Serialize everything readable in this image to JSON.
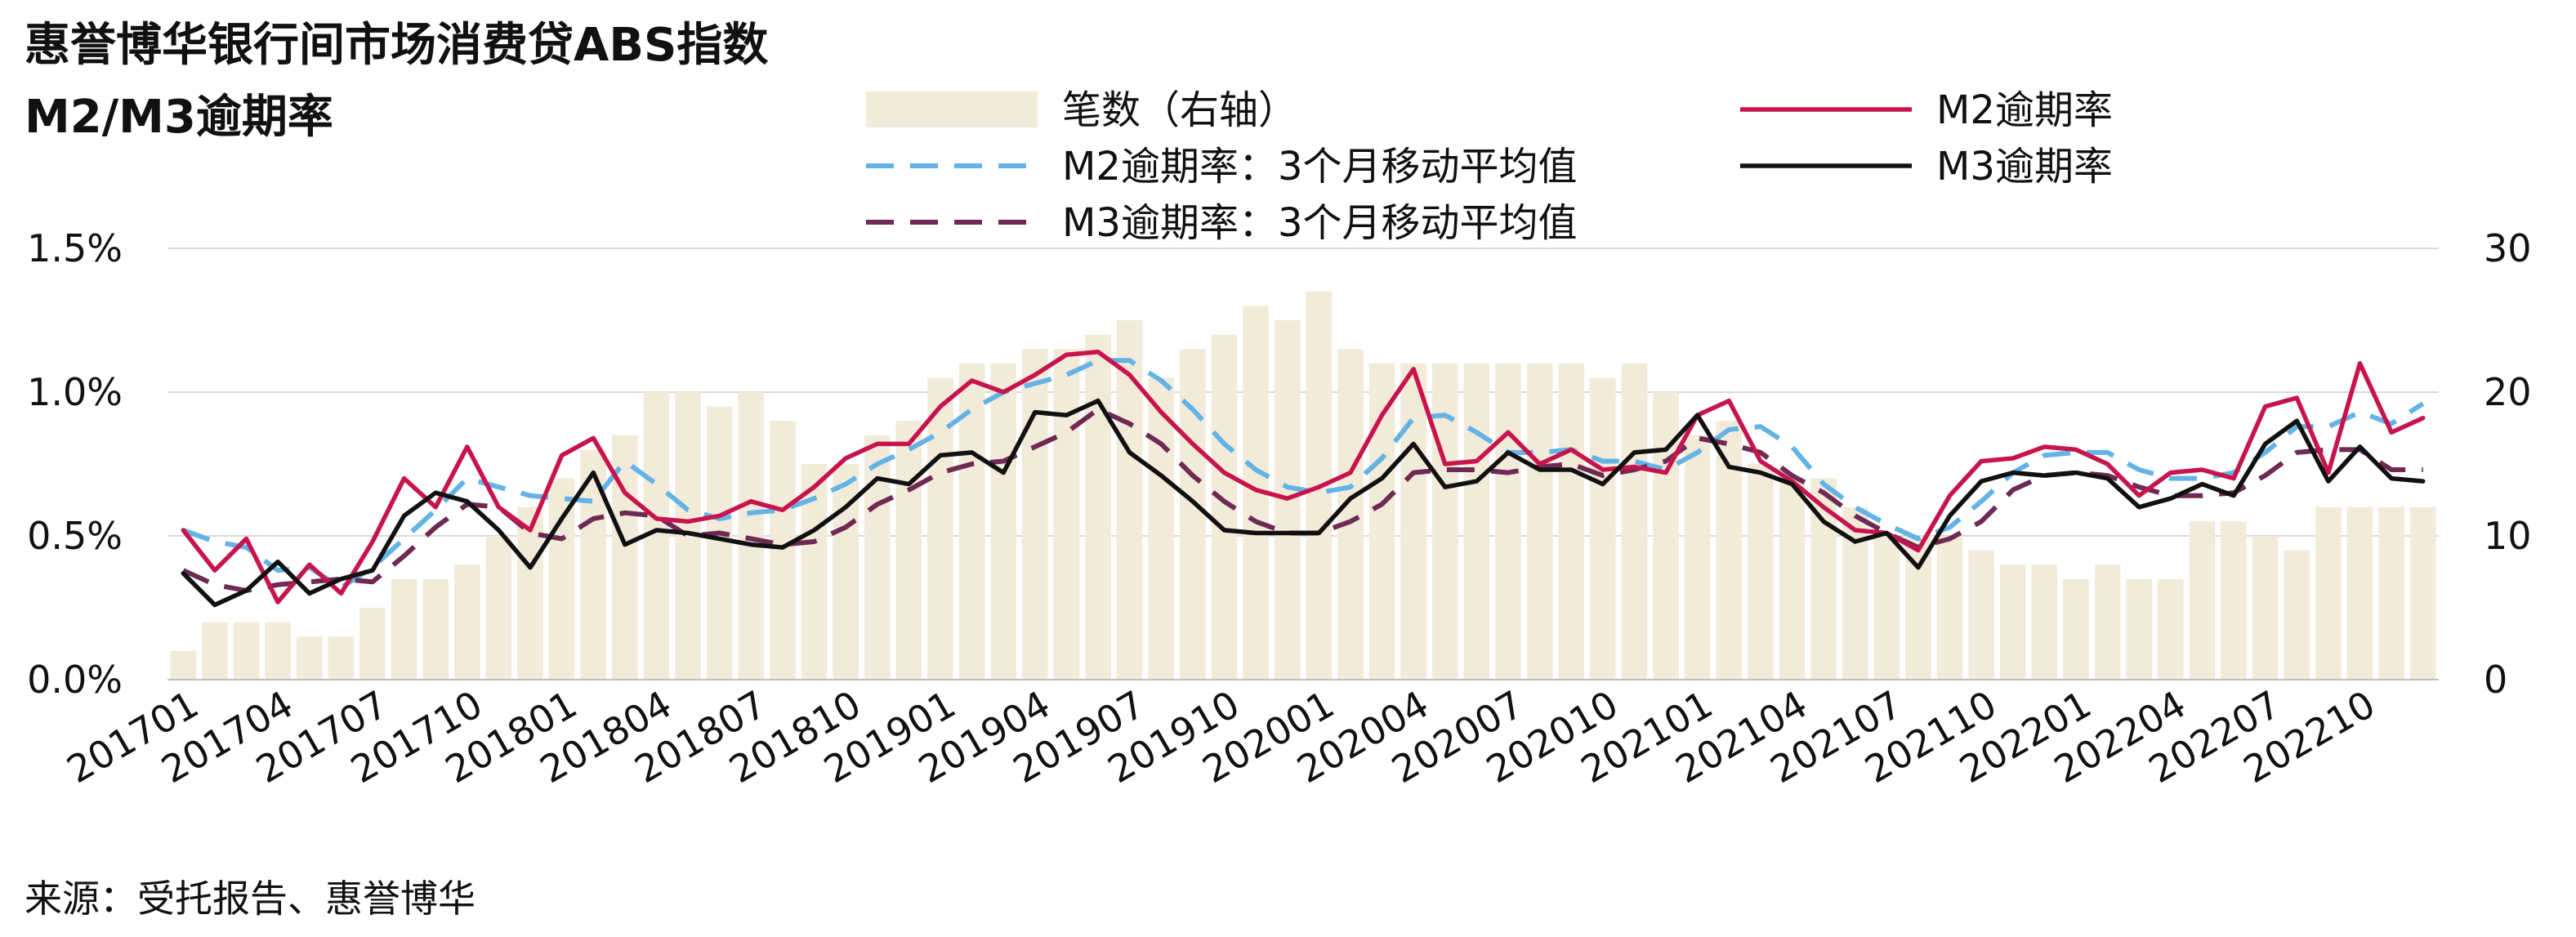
{
  "title_line1": "惠誉博华银行间市场消费贷ABS指数",
  "title_line2": "M2/M3逾期率",
  "source": "来源：受托报告、惠誉博华",
  "colors": {
    "bar": "#f3ebda",
    "m2": "#c8144c",
    "m3": "#111111",
    "m2_ma": "#63b3e6",
    "m3_ma": "#6e2a54",
    "grid": "#d9d9d9"
  },
  "chart_data": {
    "type": "bar+line",
    "legend": {
      "position": "top",
      "items": [
        {
          "key": "bars",
          "label": "笔数（右轴）"
        },
        {
          "key": "m2",
          "label": "M2逾期率"
        },
        {
          "key": "m2_ma",
          "label": "M2逾期率：3个月移动平均值"
        },
        {
          "key": "m3",
          "label": "M3逾期率"
        },
        {
          "key": "m3_ma",
          "label": "M3逾期率：3个月移动平均值"
        }
      ]
    },
    "x_tick_labels": [
      "201701",
      "201704",
      "201707",
      "201710",
      "201801",
      "201804",
      "201807",
      "201810",
      "201901",
      "201904",
      "201907",
      "201910",
      "202001",
      "202004",
      "202007",
      "202010",
      "202101",
      "202104",
      "202107",
      "202110",
      "202201",
      "202204",
      "202207",
      "202210"
    ],
    "y_left": {
      "min": 0,
      "max": 1.5,
      "ticks": [
        "0.0%",
        "0.5%",
        "1.0%",
        "1.5%"
      ],
      "tick_values": [
        0,
        0.5,
        1.0,
        1.5
      ]
    },
    "y_right": {
      "min": 0,
      "max": 30,
      "ticks": [
        "0",
        "10",
        "20",
        "30"
      ],
      "tick_values": [
        0,
        10,
        20,
        30
      ]
    },
    "grid": true,
    "months": [
      "201701",
      "201702",
      "201703",
      "201704",
      "201705",
      "201706",
      "201707",
      "201708",
      "201709",
      "201710",
      "201711",
      "201712",
      "201801",
      "201802",
      "201803",
      "201804",
      "201805",
      "201806",
      "201807",
      "201808",
      "201809",
      "201810",
      "201811",
      "201812",
      "201901",
      "201902",
      "201903",
      "201904",
      "201905",
      "201906",
      "201907",
      "201908",
      "201909",
      "201910",
      "201911",
      "201912",
      "202001",
      "202002",
      "202003",
      "202004",
      "202005",
      "202006",
      "202007",
      "202008",
      "202009",
      "202010",
      "202011",
      "202012",
      "202101",
      "202102",
      "202103",
      "202104",
      "202105",
      "202106",
      "202107",
      "202108",
      "202109",
      "202110",
      "202111",
      "202112",
      "202201",
      "202202",
      "202203",
      "202204",
      "202205",
      "202206",
      "202207",
      "202208",
      "202209",
      "202210",
      "202211",
      "202212"
    ],
    "series": [
      {
        "key": "bars",
        "name": "笔数（右轴）",
        "axis": "right",
        "kind": "bar",
        "values": [
          2,
          4,
          4,
          4,
          3,
          3,
          5,
          7,
          7,
          8,
          10,
          12,
          14,
          16,
          17,
          20,
          20,
          19,
          20,
          18,
          15,
          15,
          17,
          18,
          21,
          22,
          22,
          23,
          23,
          24,
          25,
          21,
          23,
          24,
          26,
          25,
          27,
          23,
          22,
          22,
          22,
          22,
          22,
          22,
          22,
          21,
          22,
          20,
          17,
          18,
          15,
          14,
          14,
          12,
          10,
          10,
          10,
          9,
          8,
          8,
          7,
          8,
          7,
          7,
          11,
          11,
          10,
          9,
          12,
          12,
          12,
          12
        ]
      },
      {
        "key": "m2",
        "name": "M2逾期率",
        "axis": "left",
        "kind": "line",
        "values": [
          0.52,
          0.38,
          0.49,
          0.27,
          0.4,
          0.3,
          0.48,
          0.7,
          0.6,
          0.81,
          0.6,
          0.52,
          0.78,
          0.84,
          0.65,
          0.56,
          0.55,
          0.57,
          0.62,
          0.59,
          0.67,
          0.77,
          0.82,
          0.82,
          0.95,
          1.04,
          1.0,
          1.06,
          1.13,
          1.14,
          1.06,
          0.93,
          0.82,
          0.72,
          0.66,
          0.63,
          0.67,
          0.72,
          0.92,
          1.08,
          0.75,
          0.76,
          0.86,
          0.75,
          0.8,
          0.73,
          0.74,
          0.72,
          0.92,
          0.97,
          0.76,
          0.69,
          0.6,
          0.52,
          0.51,
          0.45,
          0.64,
          0.76,
          0.77,
          0.81,
          0.8,
          0.75,
          0.64,
          0.72,
          0.73,
          0.7,
          0.95,
          0.98,
          0.72,
          1.1,
          0.86,
          0.91
        ]
      },
      {
        "key": "m3",
        "name": "M3逾期率",
        "axis": "left",
        "kind": "line",
        "values": [
          0.37,
          0.26,
          0.31,
          0.41,
          0.3,
          0.35,
          0.38,
          0.57,
          0.65,
          0.62,
          0.52,
          0.39,
          0.56,
          0.72,
          0.47,
          0.52,
          0.51,
          0.49,
          0.47,
          0.46,
          0.52,
          0.6,
          0.7,
          0.68,
          0.78,
          0.79,
          0.72,
          0.93,
          0.92,
          0.97,
          0.79,
          0.71,
          0.62,
          0.52,
          0.51,
          0.51,
          0.51,
          0.63,
          0.7,
          0.82,
          0.67,
          0.69,
          0.79,
          0.73,
          0.73,
          0.68,
          0.79,
          0.8,
          0.92,
          0.74,
          0.72,
          0.68,
          0.55,
          0.48,
          0.51,
          0.39,
          0.57,
          0.69,
          0.72,
          0.71,
          0.72,
          0.7,
          0.6,
          0.63,
          0.68,
          0.64,
          0.82,
          0.9,
          0.69,
          0.81,
          0.7,
          0.69
        ]
      },
      {
        "key": "m2_ma",
        "name": "M2逾期率：3个月移动平均值",
        "axis": "left",
        "kind": "line",
        "dashed": true,
        "values": [
          0.52,
          0.48,
          0.46,
          0.38,
          0.39,
          0.32,
          0.39,
          0.49,
          0.59,
          0.7,
          0.67,
          0.64,
          0.63,
          0.62,
          0.76,
          0.68,
          0.59,
          0.56,
          0.58,
          0.59,
          0.63,
          0.68,
          0.75,
          0.8,
          0.86,
          0.94,
          1.0,
          1.03,
          1.06,
          1.11,
          1.11,
          1.04,
          0.94,
          0.82,
          0.73,
          0.67,
          0.65,
          0.67,
          0.77,
          0.91,
          0.92,
          0.86,
          0.79,
          0.79,
          0.8,
          0.76,
          0.76,
          0.73,
          0.79,
          0.87,
          0.88,
          0.81,
          0.68,
          0.6,
          0.54,
          0.49,
          0.53,
          0.62,
          0.72,
          0.78,
          0.79,
          0.79,
          0.73,
          0.7,
          0.7,
          0.72,
          0.79,
          0.88,
          0.88,
          0.93,
          0.89,
          0.96
        ]
      },
      {
        "key": "m3_ma",
        "name": "M3逾期率：3个月移动平均值",
        "axis": "left",
        "kind": "line",
        "dashed": true,
        "values": [
          0.38,
          0.33,
          0.31,
          0.33,
          0.34,
          0.35,
          0.34,
          0.43,
          0.53,
          0.61,
          0.6,
          0.51,
          0.49,
          0.56,
          0.58,
          0.57,
          0.5,
          0.51,
          0.49,
          0.47,
          0.48,
          0.53,
          0.61,
          0.66,
          0.72,
          0.75,
          0.76,
          0.81,
          0.86,
          0.94,
          0.89,
          0.82,
          0.71,
          0.62,
          0.55,
          0.51,
          0.51,
          0.55,
          0.61,
          0.72,
          0.73,
          0.73,
          0.72,
          0.74,
          0.75,
          0.71,
          0.73,
          0.76,
          0.84,
          0.82,
          0.79,
          0.71,
          0.65,
          0.57,
          0.51,
          0.46,
          0.49,
          0.55,
          0.66,
          0.71,
          0.72,
          0.71,
          0.67,
          0.64,
          0.64,
          0.65,
          0.71,
          0.79,
          0.8,
          0.8,
          0.73,
          0.73
        ]
      }
    ]
  }
}
